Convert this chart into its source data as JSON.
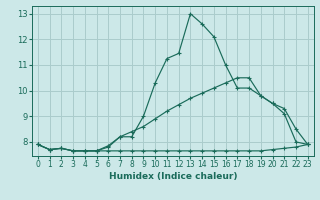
{
  "xlabel": "Humidex (Indice chaleur)",
  "ylabel": "",
  "bg_color": "#cce8e8",
  "grid_color": "#aacccc",
  "line_color": "#1a6b5a",
  "xlim": [
    -0.5,
    23.5
  ],
  "ylim": [
    7.45,
    13.3
  ],
  "xticks": [
    0,
    1,
    2,
    3,
    4,
    5,
    6,
    7,
    8,
    9,
    10,
    11,
    12,
    13,
    14,
    15,
    16,
    17,
    18,
    19,
    20,
    21,
    22,
    23
  ],
  "yticks": [
    8,
    9,
    10,
    11,
    12,
    13
  ],
  "line1_x": [
    0,
    1,
    2,
    3,
    4,
    5,
    6,
    7,
    8,
    9,
    10,
    11,
    12,
    13,
    14,
    15,
    16,
    17,
    18,
    19,
    20,
    21,
    22,
    23
  ],
  "line1_y": [
    7.9,
    7.7,
    7.75,
    7.65,
    7.65,
    7.65,
    7.65,
    7.65,
    7.65,
    7.65,
    7.65,
    7.65,
    7.65,
    7.65,
    7.65,
    7.65,
    7.65,
    7.65,
    7.65,
    7.65,
    7.7,
    7.75,
    7.8,
    7.9
  ],
  "line2_x": [
    0,
    1,
    2,
    3,
    4,
    5,
    6,
    7,
    8,
    9,
    10,
    11,
    12,
    13,
    14,
    15,
    16,
    17,
    18,
    19,
    20,
    21,
    22,
    23
  ],
  "line2_y": [
    7.9,
    7.7,
    7.75,
    7.65,
    7.65,
    7.65,
    7.85,
    8.2,
    8.2,
    9.0,
    10.3,
    11.25,
    11.45,
    13.0,
    12.6,
    12.1,
    11.0,
    10.1,
    10.1,
    9.8,
    9.5,
    9.1,
    8.0,
    7.9
  ],
  "line3_x": [
    0,
    1,
    2,
    3,
    4,
    5,
    6,
    7,
    8,
    9,
    10,
    11,
    12,
    13,
    14,
    15,
    16,
    17,
    18,
    19,
    20,
    21,
    22,
    23
  ],
  "line3_y": [
    7.9,
    7.7,
    7.75,
    7.65,
    7.65,
    7.65,
    7.8,
    8.2,
    8.4,
    8.6,
    8.9,
    9.2,
    9.45,
    9.7,
    9.9,
    10.1,
    10.3,
    10.5,
    10.5,
    9.8,
    9.5,
    9.3,
    8.5,
    7.9
  ]
}
